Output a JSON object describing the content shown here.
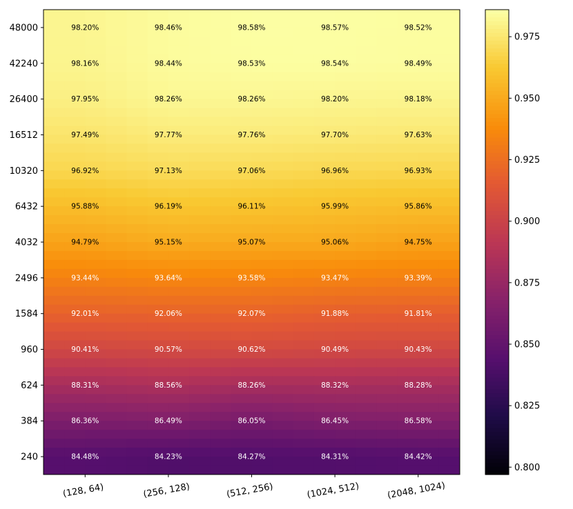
{
  "chart_data": {
    "type": "heatmap",
    "title": "",
    "xlabel": "",
    "ylabel": "",
    "x_categories": [
      "(128, 64)",
      "(256, 128)",
      "(512, 256)",
      "(1024, 512)",
      "(2048, 1024)"
    ],
    "y_categories": [
      "48000",
      "42240",
      "26400",
      "16512",
      "10320",
      "6432",
      "4032",
      "2496",
      "1584",
      "960",
      "624",
      "384",
      "240"
    ],
    "cell_labels": [
      [
        "98.20%",
        "98.46%",
        "98.58%",
        "98.57%",
        "98.52%"
      ],
      [
        "98.16%",
        "98.44%",
        "98.53%",
        "98.54%",
        "98.49%"
      ],
      [
        "97.95%",
        "98.26%",
        "98.26%",
        "98.20%",
        "98.18%"
      ],
      [
        "97.49%",
        "97.77%",
        "97.76%",
        "97.70%",
        "97.63%"
      ],
      [
        "96.92%",
        "97.13%",
        "97.06%",
        "96.96%",
        "96.93%"
      ],
      [
        "95.88%",
        "96.19%",
        "96.11%",
        "95.99%",
        "95.86%"
      ],
      [
        "94.79%",
        "95.15%",
        "95.07%",
        "95.06%",
        "94.75%"
      ],
      [
        "93.44%",
        "93.64%",
        "93.58%",
        "93.47%",
        "93.39%"
      ],
      [
        "92.01%",
        "92.06%",
        "92.07%",
        "91.88%",
        "91.81%"
      ],
      [
        "90.41%",
        "90.57%",
        "90.62%",
        "90.49%",
        "90.43%"
      ],
      [
        "88.31%",
        "88.56%",
        "88.26%",
        "88.32%",
        "88.28%"
      ],
      [
        "86.36%",
        "86.49%",
        "86.05%",
        "86.45%",
        "86.58%"
      ],
      [
        "84.48%",
        "84.23%",
        "84.27%",
        "84.31%",
        "84.42%"
      ]
    ],
    "values": [
      [
        0.982,
        0.9846,
        0.9858,
        0.9857,
        0.9852
      ],
      [
        0.9816,
        0.9844,
        0.9853,
        0.9854,
        0.9849
      ],
      [
        0.9795,
        0.9826,
        0.9826,
        0.982,
        0.9818
      ],
      [
        0.9749,
        0.9777,
        0.9776,
        0.977,
        0.9763
      ],
      [
        0.9692,
        0.9713,
        0.9706,
        0.9696,
        0.9693
      ],
      [
        0.9588,
        0.9619,
        0.9611,
        0.9599,
        0.9586
      ],
      [
        0.9479,
        0.9515,
        0.9507,
        0.9506,
        0.9475
      ],
      [
        0.9344,
        0.9364,
        0.9358,
        0.9347,
        0.9339
      ],
      [
        0.9201,
        0.9206,
        0.9207,
        0.9188,
        0.9181
      ],
      [
        0.9041,
        0.9057,
        0.9062,
        0.9049,
        0.9043
      ],
      [
        0.8831,
        0.8856,
        0.8826,
        0.8832,
        0.8828
      ],
      [
        0.8636,
        0.8649,
        0.8605,
        0.8645,
        0.8658
      ],
      [
        0.8448,
        0.8423,
        0.8427,
        0.8431,
        0.8442
      ]
    ],
    "colormap": "inferno",
    "colorbar": {
      "min": 0.797,
      "max": 0.986,
      "ticks": [
        "0.800",
        "0.825",
        "0.850",
        "0.875",
        "0.900",
        "0.925",
        "0.950",
        "0.975"
      ],
      "tick_values": [
        0.8,
        0.825,
        0.85,
        0.875,
        0.9,
        0.925,
        0.95,
        0.975
      ]
    },
    "text_color_threshold": 0.94,
    "legend": "colorbar right"
  }
}
